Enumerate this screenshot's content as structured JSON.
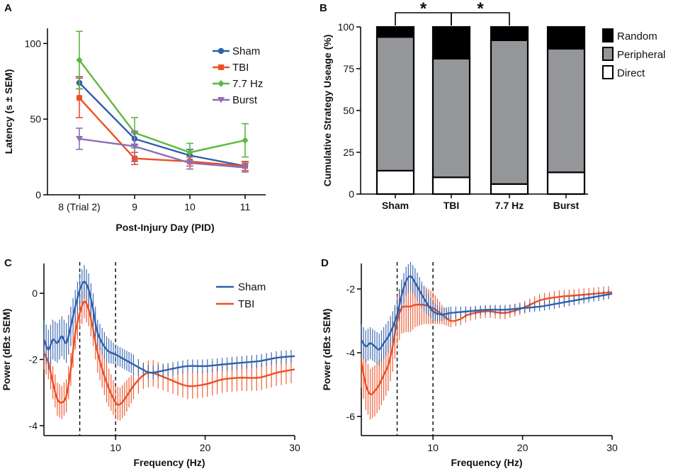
{
  "panels": {
    "A": "A",
    "B": "B",
    "C": "C",
    "D": "D"
  },
  "colors": {
    "sham": "#2f5fad",
    "tbi": "#ee4e24",
    "hz77": "#5db83e",
    "burst": "#8e6fb3",
    "random": "#000000",
    "peripheral": "#959699",
    "direct": "#ffffff"
  },
  "chart_data": [
    {
      "id": "A",
      "type": "line",
      "title": "",
      "xlabel": "Post-Injury Day (PID)",
      "ylabel": "Latency (s ± SEM)",
      "categories": [
        "8 (Trial 2)",
        "9",
        "10",
        "11"
      ],
      "ylim": [
        0,
        110
      ],
      "yticks": [
        "0",
        "50",
        "100"
      ],
      "series": [
        {
          "key": "sham",
          "name": "Sham",
          "marker": "circle",
          "values": [
            74,
            37,
            26,
            19
          ],
          "err": [
            4,
            4,
            4,
            3
          ]
        },
        {
          "key": "tbi",
          "name": "TBI",
          "marker": "square",
          "values": [
            64,
            24,
            22,
            19
          ],
          "err": [
            13,
            4,
            3,
            3
          ]
        },
        {
          "key": "hz77",
          "name": "7.7 Hz",
          "marker": "diamond",
          "values": [
            89,
            41,
            28,
            36
          ],
          "err": [
            19,
            10,
            6,
            11
          ]
        },
        {
          "key": "burst",
          "name": "Burst",
          "marker": "triangle",
          "values": [
            37,
            32,
            21,
            18
          ],
          "err": [
            7,
            10,
            4,
            3
          ]
        }
      ]
    },
    {
      "id": "B",
      "type": "bar",
      "stacked": true,
      "title": "",
      "xlabel": "",
      "ylabel": "Cumulative Strategy Useage (%)",
      "categories": [
        "Sham",
        "TBI",
        "7.7 Hz",
        "Burst"
      ],
      "ylim": [
        0,
        100
      ],
      "yticks": [
        "0",
        "25",
        "50",
        "75",
        "100"
      ],
      "series": [
        {
          "key": "direct",
          "name": "Direct",
          "values": [
            14,
            10,
            6,
            13
          ]
        },
        {
          "key": "peripheral",
          "name": "Peripheral",
          "values": [
            80,
            71,
            86,
            74
          ]
        },
        {
          "key": "random",
          "name": "Random",
          "values": [
            6,
            19,
            8,
            13
          ]
        }
      ],
      "legend_order": [
        "random",
        "peripheral",
        "direct"
      ],
      "significance": [
        {
          "from": "Sham",
          "to": "TBI",
          "label": "*"
        },
        {
          "from": "TBI",
          "to": "7.7 Hz",
          "label": "*"
        }
      ]
    },
    {
      "id": "C",
      "type": "line",
      "title": "",
      "xlabel": "Frequency (Hz)",
      "ylabel": "Power (dB± SEM)",
      "xlim": [
        2,
        30
      ],
      "ylim": [
        -4.3,
        0.9
      ],
      "xticks": [
        "10",
        "20",
        "30"
      ],
      "yticks": [
        "0",
        "-2",
        "-4"
      ],
      "vlines": [
        6,
        10
      ],
      "series": [
        {
          "key": "sham",
          "name": "Sham",
          "x": [
            2,
            2.5,
            3,
            3.5,
            4,
            4.5,
            5,
            5.5,
            6,
            6.5,
            7,
            7.5,
            8,
            9,
            10,
            11,
            12,
            13,
            14,
            16,
            18,
            20,
            22,
            24,
            26,
            28,
            30
          ],
          "values": [
            -1.4,
            -1.7,
            -1.4,
            -1.5,
            -1.3,
            -1.5,
            -1.0,
            -0.4,
            0.1,
            0.35,
            0.1,
            -0.5,
            -1.2,
            -1.7,
            -1.85,
            -2.0,
            -2.15,
            -2.3,
            -2.4,
            -2.3,
            -2.2,
            -2.2,
            -2.15,
            -2.1,
            -2.05,
            -1.95,
            -1.9
          ],
          "err": [
            0.6,
            0.6,
            0.6,
            0.6,
            0.6,
            0.6,
            0.6,
            0.5,
            0.5,
            0.5,
            0.5,
            0.5,
            0.4,
            0.4,
            0.3,
            0.3,
            0.3,
            0.2,
            0.2,
            0.2,
            0.2,
            0.2,
            0.2,
            0.2,
            0.2,
            0.2,
            0.2
          ]
        },
        {
          "key": "tbi",
          "name": "TBI",
          "x": [
            2,
            2.5,
            3,
            3.5,
            4,
            4.5,
            5,
            5.5,
            6,
            6.5,
            7,
            7.5,
            8,
            9,
            10,
            10.5,
            11,
            12,
            13,
            14,
            16,
            18,
            20,
            22,
            24,
            26,
            28,
            30
          ],
          "values": [
            -1.8,
            -2.1,
            -2.7,
            -3.2,
            -3.3,
            -3.1,
            -2.3,
            -1.2,
            -0.6,
            -0.25,
            -0.5,
            -1.1,
            -1.8,
            -2.7,
            -3.3,
            -3.35,
            -3.2,
            -2.8,
            -2.5,
            -2.4,
            -2.6,
            -2.8,
            -2.75,
            -2.6,
            -2.55,
            -2.55,
            -2.4,
            -2.3
          ],
          "err": [
            0.5,
            0.5,
            0.5,
            0.5,
            0.5,
            0.5,
            0.5,
            0.5,
            0.5,
            0.5,
            0.5,
            0.5,
            0.6,
            0.6,
            0.5,
            0.5,
            0.5,
            0.4,
            0.4,
            0.4,
            0.4,
            0.4,
            0.4,
            0.4,
            0.4,
            0.4,
            0.4,
            0.4
          ]
        }
      ]
    },
    {
      "id": "D",
      "type": "line",
      "title": "",
      "xlabel": "Frequency (Hz)",
      "ylabel": "Power (dB± SEM)",
      "xlim": [
        2,
        30
      ],
      "ylim": [
        -6.6,
        -1.2
      ],
      "xticks": [
        "10",
        "20",
        "30"
      ],
      "yticks": [
        "-2",
        "-4",
        "-6"
      ],
      "vlines": [
        6,
        10
      ],
      "series": [
        {
          "key": "sham",
          "name": "Sham",
          "x": [
            2,
            2.5,
            3,
            3.5,
            4,
            4.5,
            5,
            5.5,
            6,
            6.5,
            7,
            7.5,
            8,
            9,
            10,
            11,
            12,
            14,
            16,
            18,
            20,
            22,
            24,
            26,
            28,
            30
          ],
          "values": [
            -3.6,
            -3.8,
            -3.7,
            -3.8,
            -3.9,
            -3.7,
            -3.5,
            -3.2,
            -2.8,
            -2.2,
            -1.75,
            -1.6,
            -1.8,
            -2.3,
            -2.7,
            -2.8,
            -2.75,
            -2.7,
            -2.65,
            -2.65,
            -2.6,
            -2.55,
            -2.45,
            -2.35,
            -2.25,
            -2.15
          ],
          "err": [
            0.5,
            0.5,
            0.5,
            0.5,
            0.5,
            0.5,
            0.5,
            0.5,
            0.5,
            0.5,
            0.45,
            0.45,
            0.45,
            0.4,
            0.3,
            0.2,
            0.2,
            0.15,
            0.15,
            0.15,
            0.15,
            0.15,
            0.15,
            0.15,
            0.15,
            0.15
          ]
        },
        {
          "key": "tbi",
          "name": "TBI",
          "x": [
            2,
            2.5,
            3,
            3.5,
            4,
            4.5,
            5,
            5.5,
            6,
            6.5,
            7,
            7.5,
            8,
            9,
            10,
            11,
            12,
            13,
            14,
            16,
            18,
            20,
            22,
            24,
            26,
            28,
            30
          ],
          "values": [
            -4.3,
            -5.0,
            -5.3,
            -5.2,
            -5.0,
            -4.7,
            -4.4,
            -3.8,
            -3.0,
            -2.6,
            -2.55,
            -2.55,
            -2.5,
            -2.5,
            -2.6,
            -2.8,
            -3.0,
            -2.95,
            -2.8,
            -2.7,
            -2.75,
            -2.6,
            -2.35,
            -2.25,
            -2.2,
            -2.15,
            -2.1
          ],
          "err": [
            0.8,
            0.8,
            0.8,
            0.8,
            0.8,
            0.8,
            0.8,
            0.8,
            0.8,
            0.8,
            0.8,
            0.8,
            0.7,
            0.6,
            0.5,
            0.3,
            0.2,
            0.2,
            0.2,
            0.2,
            0.2,
            0.2,
            0.2,
            0.2,
            0.2,
            0.2,
            0.2
          ]
        }
      ]
    }
  ]
}
